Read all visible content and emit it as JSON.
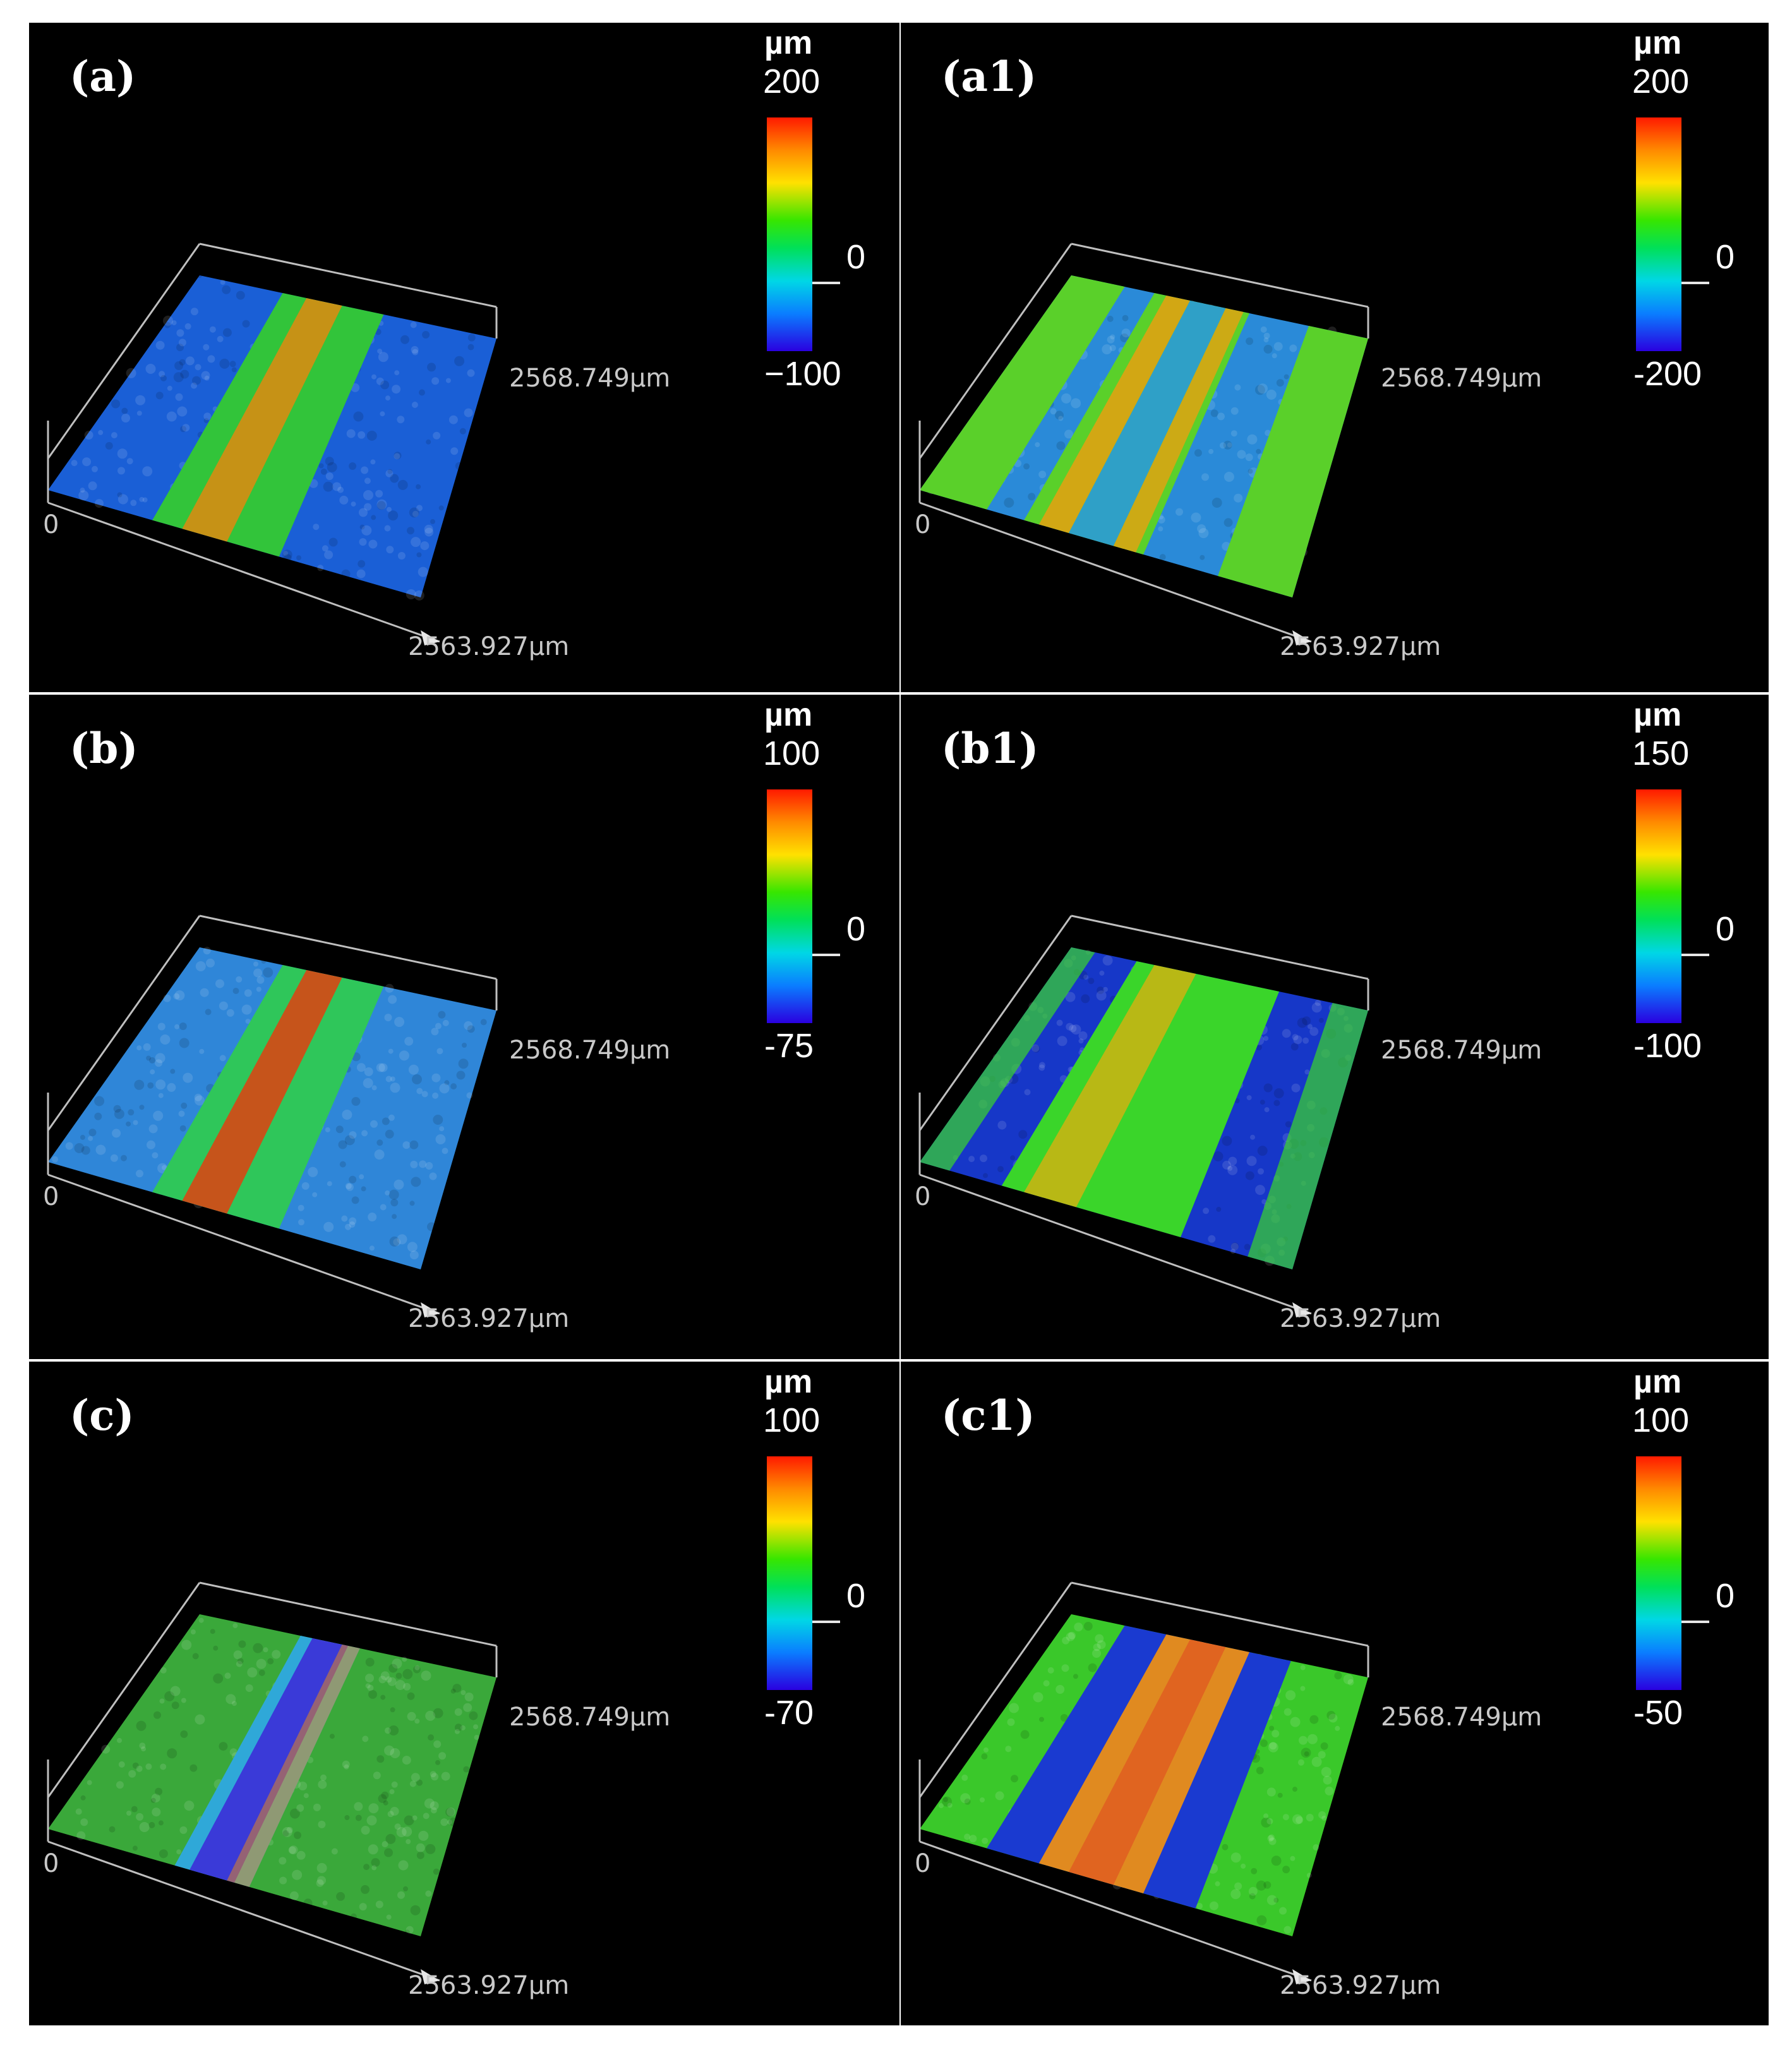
{
  "figure": {
    "panels": [
      {
        "id": "a",
        "label": "(a)",
        "unit": "µm",
        "max": "200",
        "mid": "0",
        "min": "−100",
        "axis_y": "2568.749µm",
        "axis_x": "2563.927µm",
        "origin": "0",
        "pattern": "single-raised-track",
        "colors": {
          "base": "#1a5fd6",
          "track": "#32c43a",
          "peak": "#e08a10"
        }
      },
      {
        "id": "a1",
        "label": "(a1)",
        "unit": "µm",
        "max": "200",
        "mid": "0",
        "min": "-200",
        "axis_y": "2568.749µm",
        "axis_x": "2563.927µm",
        "origin": "0",
        "pattern": "multi-track",
        "colors": {
          "base": "#2a8ad8",
          "track": "#5ad02a",
          "peak": "#e8a010"
        }
      },
      {
        "id": "b",
        "label": "(b)",
        "unit": "µm",
        "max": "100",
        "mid": "0",
        "min": "-75",
        "axis_y": "2568.749µm",
        "axis_x": "2563.927µm",
        "origin": "0",
        "pattern": "single-raised-track",
        "colors": {
          "base": "#2f86d8",
          "track": "#2fc65a",
          "peak": "#e04010"
        }
      },
      {
        "id": "b1",
        "label": "(b1)",
        "unit": "µm",
        "max": "150",
        "mid": "0",
        "min": "-100",
        "axis_y": "2568.749µm",
        "axis_x": "2563.927µm",
        "origin": "0",
        "pattern": "wide-track",
        "colors": {
          "base": "#1637c8",
          "track": "#3ad52a",
          "peak": "#d8b010"
        }
      },
      {
        "id": "c",
        "label": "(c)",
        "unit": "µm",
        "max": "100",
        "mid": "0",
        "min": "-70",
        "axis_y": "2568.749µm",
        "axis_x": "2563.927µm",
        "origin": "0",
        "pattern": "groove",
        "colors": {
          "base": "#3aa83a",
          "track": "#3a3ad8",
          "peak": "#f08a10"
        }
      },
      {
        "id": "c1",
        "label": "(c1)",
        "unit": "µm",
        "max": "100",
        "mid": "0",
        "min": "-50",
        "axis_y": "2568.749µm",
        "axis_x": "2563.927µm",
        "origin": "0",
        "pattern": "centre-ridge",
        "colors": {
          "base": "#3ac82a",
          "track": "#1a3ad0",
          "peak": "#e08a20"
        }
      }
    ]
  }
}
